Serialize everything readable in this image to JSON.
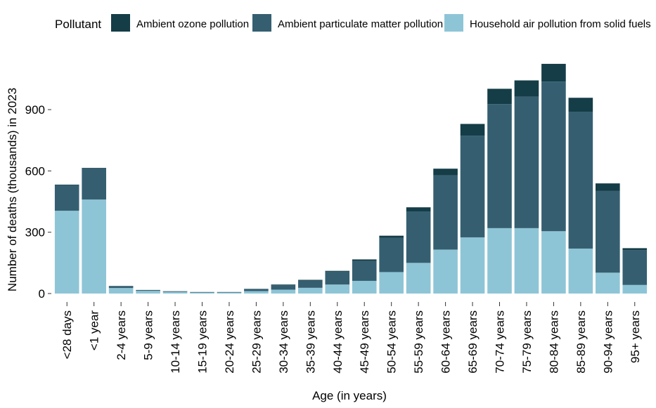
{
  "chart_data": {
    "type": "bar",
    "stacked": true,
    "title": "",
    "xlabel": "Age (in years)",
    "ylabel": "Number of deaths (thousands) in 2023",
    "ylim": [
      0,
      1120
    ],
    "yticks": [
      0,
      300,
      600,
      900
    ],
    "legend": {
      "title": "Pollutant",
      "position": "top"
    },
    "categories": [
      "<28 days",
      "<1 year",
      "2-4 years",
      "5-9 years",
      "10-14 years",
      "15-19 years",
      "20-24 years",
      "25-29 years",
      "30-34 years",
      "35-39 years",
      "40-44 years",
      "45-49 years",
      "50-54 years",
      "55-59 years",
      "60-64 years",
      "65-69 years",
      "70-74 years",
      "75-79 years",
      "80-84 years",
      "85-89 years",
      "90-94 years",
      "95+ years"
    ],
    "series": [
      {
        "name": "Household air pollution from solid fuels",
        "color": "#8ec5d6",
        "values": [
          405,
          460,
          27,
          13,
          8,
          5,
          5,
          12,
          19,
          28,
          44,
          62,
          105,
          150,
          215,
          275,
          320,
          320,
          305,
          220,
          102,
          42
        ]
      },
      {
        "name": "Ambient particulate matter pollution",
        "color": "#355f71",
        "values": [
          126,
          153,
          9,
          4,
          3,
          2,
          2,
          10,
          22,
          35,
          63,
          98,
          168,
          252,
          363,
          498,
          607,
          643,
          732,
          670,
          400,
          170
        ]
      },
      {
        "name": "Ambient ozone pollution",
        "color": "#143d47",
        "values": [
          2,
          2,
          1,
          0.5,
          0.5,
          0.5,
          0.5,
          1,
          3,
          4,
          4,
          7,
          10,
          20,
          33,
          57,
          75,
          80,
          87,
          68,
          37,
          10
        ]
      }
    ],
    "legend_order": [
      "Ambient ozone pollution",
      "Ambient particulate matter pollution",
      "Household air pollution from solid fuels"
    ]
  }
}
